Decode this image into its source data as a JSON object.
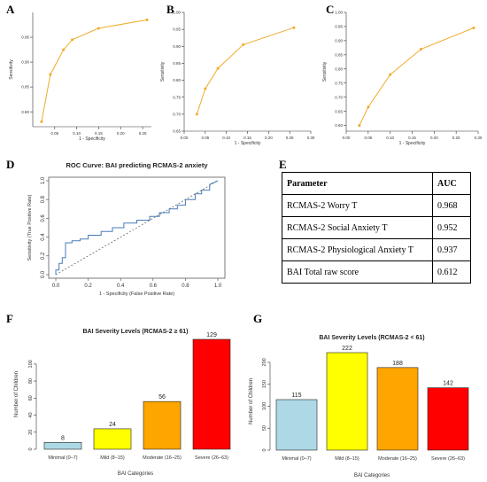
{
  "panels": {
    "a": "A",
    "b": "B",
    "c": "C",
    "d": "D",
    "e": "E",
    "f": "F",
    "g": "G"
  },
  "colors": {
    "roc_small": "#f0ab2a",
    "roc_d": "#4a7bb7",
    "bar_minimal": "#add8e6",
    "bar_mild": "#ffff00",
    "bar_moderate": "#ffa500",
    "bar_severe": "#ff0000"
  },
  "chart_data": [
    {
      "panel": "A",
      "type": "line",
      "xlabel": "1 - Specificity",
      "ylabel": "Sensitivity",
      "x_ticks": [
        "0.05",
        "0.10",
        "0.15",
        "0.20",
        "0.25"
      ],
      "y_ticks": [
        "0.80",
        "0.85",
        "0.90",
        "0.95"
      ],
      "xlim": [
        0.0,
        0.27
      ],
      "ylim": [
        0.77,
        1.0
      ],
      "series": [
        {
          "x": [
            0.02,
            0.04,
            0.07,
            0.09,
            0.15,
            0.26
          ],
          "y": [
            0.78,
            0.875,
            0.925,
            0.945,
            0.968,
            0.985
          ]
        }
      ]
    },
    {
      "panel": "B",
      "type": "line",
      "xlabel": "1 - Specificity",
      "ylabel": "Sensitivity",
      "x_ticks": [
        "0.00",
        "0.05",
        "0.10",
        "0.15",
        "0.20",
        "0.25",
        "0.30"
      ],
      "y_ticks": [
        "0.65",
        "0.70",
        "0.75",
        "0.80",
        "0.85",
        "0.90",
        "0.95",
        "1.00"
      ],
      "xlim": [
        0.0,
        0.3
      ],
      "ylim": [
        0.65,
        1.0
      ],
      "series": [
        {
          "x": [
            0.03,
            0.05,
            0.08,
            0.14,
            0.26
          ],
          "y": [
            0.7,
            0.775,
            0.835,
            0.905,
            0.955
          ]
        }
      ]
    },
    {
      "panel": "C",
      "type": "line",
      "xlabel": "1 - Specificity",
      "ylabel": "Sensitivity",
      "x_ticks": [
        "0.00",
        "0.05",
        "0.10",
        "0.15",
        "0.20",
        "0.25",
        "0.30"
      ],
      "y_ticks": [
        "0.60",
        "0.65",
        "0.70",
        "0.75",
        "0.80",
        "0.85",
        "0.90",
        "0.95",
        "1.00"
      ],
      "xlim": [
        0.0,
        0.3
      ],
      "ylim": [
        0.58,
        1.0
      ],
      "series": [
        {
          "x": [
            0.03,
            0.05,
            0.1,
            0.17,
            0.29
          ],
          "y": [
            0.6,
            0.665,
            0.78,
            0.87,
            0.945
          ]
        }
      ]
    },
    {
      "panel": "D",
      "type": "line",
      "title": "ROC Curve: BAI predicting RCMAS-2 anxiety",
      "xlabel": "1 - Specificity (False Positive Rate)",
      "ylabel": "Sensitivity (True Positive Rate)",
      "x_ticks": [
        "0.0",
        "0.2",
        "0.4",
        "0.6",
        "0.8",
        "1.0"
      ],
      "y_ticks": [
        "0.0",
        "0.2",
        "0.4",
        "0.6",
        "0.8",
        "1.0"
      ],
      "xlim": [
        0.0,
        1.0
      ],
      "ylim": [
        0.0,
        1.0
      ],
      "series": [
        {
          "x": [
            0.0,
            0.0,
            0.02,
            0.02,
            0.04,
            0.04,
            0.06,
            0.06,
            0.1,
            0.1,
            0.15,
            0.15,
            0.2,
            0.2,
            0.28,
            0.28,
            0.35,
            0.35,
            0.42,
            0.42,
            0.5,
            0.5,
            0.58,
            0.58,
            0.64,
            0.64,
            0.7,
            0.7,
            0.75,
            0.75,
            0.8,
            0.8,
            0.86,
            0.86,
            0.9,
            0.9,
            0.95,
            0.95,
            1.0
          ],
          "y": [
            0.0,
            0.05,
            0.05,
            0.12,
            0.12,
            0.18,
            0.18,
            0.34,
            0.34,
            0.36,
            0.36,
            0.38,
            0.38,
            0.42,
            0.42,
            0.46,
            0.46,
            0.5,
            0.5,
            0.55,
            0.55,
            0.58,
            0.58,
            0.62,
            0.62,
            0.66,
            0.66,
            0.7,
            0.7,
            0.74,
            0.74,
            0.8,
            0.8,
            0.86,
            0.86,
            0.9,
            0.9,
            0.96,
            1.0
          ]
        }
      ],
      "reference_line": {
        "x": [
          0,
          1
        ],
        "y": [
          0,
          1
        ]
      }
    },
    {
      "panel": "F",
      "type": "bar",
      "title": "BAI Severity Levels (RCMAS-2 ≥ 61)",
      "xlabel": "BAI Categories",
      "ylabel": "Number of Children",
      "categories": [
        "Minimal (0–7)",
        "Mild (8–15)",
        "Moderate (16–25)",
        "Severe (26–63)"
      ],
      "values": [
        8,
        24,
        56,
        129
      ],
      "y_ticks": [
        "0",
        "20",
        "40",
        "60",
        "80",
        "100"
      ],
      "ylim": [
        0,
        129
      ]
    },
    {
      "panel": "G",
      "type": "bar",
      "title": "BAI Severity Levels (RCMAS-2 < 61)",
      "xlabel": "BAI Categories",
      "ylabel": "Number of Children",
      "categories": [
        "Minimal (0–7)",
        "Mild (8–15)",
        "Moderate (16–25)",
        "Severe (26–63)"
      ],
      "values": [
        115,
        222,
        188,
        142
      ],
      "y_ticks": [
        "0",
        "50",
        "100",
        "150",
        "200"
      ],
      "ylim": [
        0,
        222
      ]
    },
    {
      "panel": "E",
      "type": "table",
      "headers": [
        "Parameter",
        "AUC"
      ],
      "rows": [
        [
          "RCMAS-2 Worry T",
          "0.968"
        ],
        [
          "RCMAS-2 Social Anxiety T",
          "0.952"
        ],
        [
          "RCMAS-2 Physiological Anxiety T",
          "0.937"
        ],
        [
          "BAI Total raw score",
          "0.612"
        ]
      ]
    }
  ]
}
